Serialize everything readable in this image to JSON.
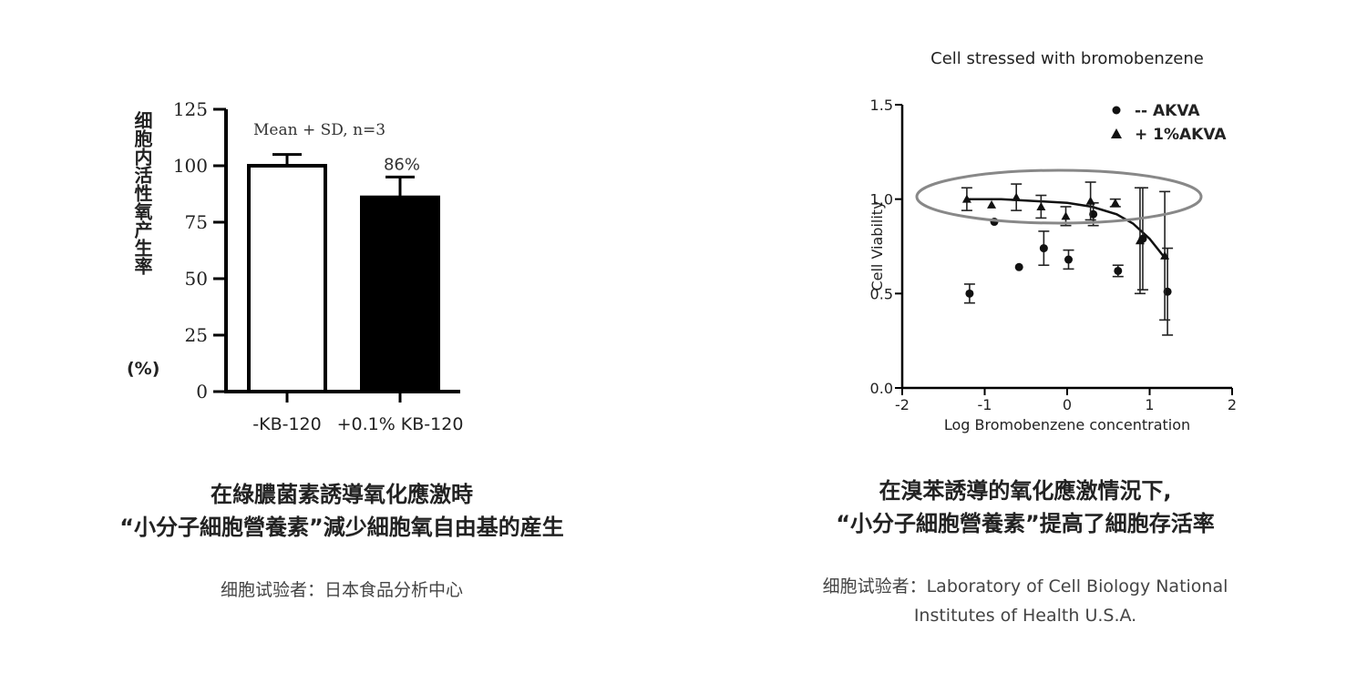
{
  "chart_data": [
    {
      "type": "bar",
      "title": "",
      "ylabel": "细胞内活性氧产生率",
      "ylabel_unit": "(%)",
      "xlabel": "",
      "annotation": "Mean + SD, n=3",
      "categories": [
        "-KB-120",
        "+0.1% KB-120"
      ],
      "series": [
        {
          "values": [
            100,
            86
          ],
          "errors": [
            5,
            9
          ],
          "colors": [
            "#ffffff",
            "#000000"
          ]
        }
      ],
      "data_labels": [
        "",
        "86%"
      ],
      "ylim": [
        0,
        125
      ],
      "yticks": [
        "0",
        "25",
        "50",
        "75",
        "100",
        "125"
      ],
      "grid": false
    },
    {
      "type": "scatter",
      "title": "Cell stressed with bromobenzene",
      "xlabel": "Log Bromobenzene concentration",
      "ylabel": "Cell Viability",
      "xlim": [
        -2,
        2
      ],
      "ylim": [
        0,
        1.5
      ],
      "xticks": [
        "-2",
        "-1",
        "0",
        "1",
        "2"
      ],
      "yticks": [
        "0.0",
        "0.5",
        "1.0",
        "1.5"
      ],
      "legend_position": "top-right",
      "grid": false,
      "series": [
        {
          "name": "-- AKVA",
          "marker": "circle",
          "x": [
            -1.2,
            -0.9,
            -0.6,
            -0.3,
            0.0,
            0.3,
            0.6,
            0.9,
            1.2
          ],
          "y": [
            0.5,
            0.88,
            0.64,
            0.74,
            0.68,
            0.92,
            0.62,
            0.79,
            0.51
          ],
          "errors": [
            0.05,
            0.0,
            0.0,
            0.09,
            0.05,
            0.06,
            0.03,
            0.27,
            0.23
          ]
        },
        {
          "name": "+ 1%AKVA",
          "marker": "triangle",
          "x": [
            -1.2,
            -0.9,
            -0.6,
            -0.3,
            0.0,
            0.3,
            0.6,
            0.9,
            1.2
          ],
          "y": [
            1.0,
            0.97,
            1.01,
            0.96,
            0.91,
            0.99,
            0.98,
            0.78,
            0.7
          ],
          "errors": [
            0.06,
            0.0,
            0.07,
            0.06,
            0.05,
            0.1,
            0.02,
            0.28,
            0.34
          ]
        }
      ],
      "curve": {
        "x": [
          -1.2,
          -0.8,
          -0.4,
          0.0,
          0.3,
          0.6,
          0.8,
          1.0,
          1.2
        ],
        "y": [
          1.0,
          1.0,
          0.99,
          0.98,
          0.96,
          0.92,
          0.87,
          0.79,
          0.68
        ]
      },
      "highlight": "ellipse"
    }
  ],
  "captions": {
    "left_line1": "在綠膿菌素誘導氧化應激時",
    "left_line2": "“小分子細胞營養素”減少細胞氧自由基的産生",
    "left_credit": "细胞试验者：日本食品分析中心",
    "right_line1": "在溴苯誘導的氧化應激情況下,",
    "right_line2": "“小分子細胞營養素”提高了細胞存活率",
    "right_credit_1": "细胞试验者：Laboratory of Cell Biology National",
    "right_credit_2": "Institutes of Health U.S.A."
  }
}
